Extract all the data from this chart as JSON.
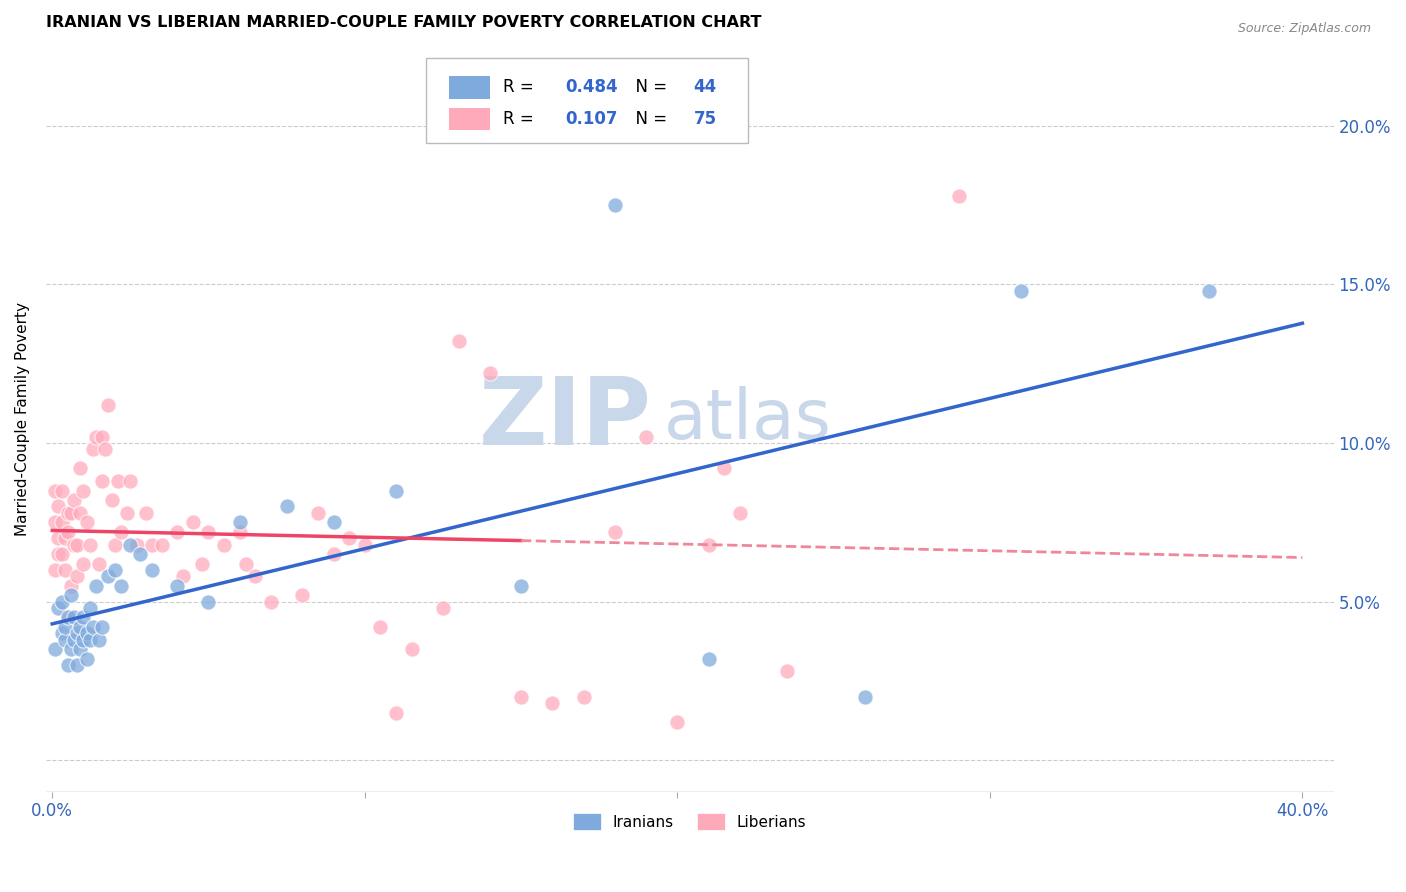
{
  "title": "IRANIAN VS LIBERIAN MARRIED-COUPLE FAMILY POVERTY CORRELATION CHART",
  "source": "Source: ZipAtlas.com",
  "ylabel": "Married-Couple Family Poverty",
  "ytick_vals": [
    0.0,
    0.05,
    0.1,
    0.15,
    0.2
  ],
  "ytick_labels": [
    "",
    "5.0%",
    "10.0%",
    "15.0%",
    "20.0%"
  ],
  "xtick_vals": [
    0.0,
    0.1,
    0.2,
    0.3,
    0.4
  ],
  "xtick_show": [
    0.0,
    0.4
  ],
  "xlim": [
    -0.002,
    0.41
  ],
  "ylim": [
    -0.01,
    0.225
  ],
  "iranian_color": "#7faadd",
  "liberian_color": "#ffaabb",
  "trendline_iranian_color": "#3366cc",
  "trendline_liberian_color": "#ee4466",
  "trendline_liberian_dash_color": "#ee8899",
  "R_iranian": 0.484,
  "N_iranian": 44,
  "R_liberian": 0.107,
  "N_liberian": 75,
  "watermark_zip": "ZIP",
  "watermark_atlas": "atlas",
  "watermark_color": "#c8d8ea",
  "iranians_x": [
    0.001,
    0.002,
    0.003,
    0.003,
    0.004,
    0.004,
    0.005,
    0.005,
    0.006,
    0.006,
    0.007,
    0.007,
    0.008,
    0.008,
    0.009,
    0.009,
    0.01,
    0.01,
    0.011,
    0.011,
    0.012,
    0.012,
    0.013,
    0.014,
    0.015,
    0.016,
    0.018,
    0.02,
    0.022,
    0.025,
    0.028,
    0.032,
    0.04,
    0.05,
    0.06,
    0.075,
    0.09,
    0.11,
    0.15,
    0.18,
    0.21,
    0.26,
    0.31,
    0.37
  ],
  "iranians_y": [
    0.035,
    0.048,
    0.04,
    0.05,
    0.038,
    0.042,
    0.03,
    0.045,
    0.035,
    0.052,
    0.038,
    0.045,
    0.04,
    0.03,
    0.042,
    0.035,
    0.045,
    0.038,
    0.04,
    0.032,
    0.038,
    0.048,
    0.042,
    0.055,
    0.038,
    0.042,
    0.058,
    0.06,
    0.055,
    0.068,
    0.065,
    0.06,
    0.055,
    0.05,
    0.075,
    0.08,
    0.075,
    0.085,
    0.055,
    0.175,
    0.032,
    0.02,
    0.148,
    0.148
  ],
  "liberians_x": [
    0.001,
    0.001,
    0.001,
    0.002,
    0.002,
    0.002,
    0.003,
    0.003,
    0.003,
    0.004,
    0.004,
    0.005,
    0.005,
    0.005,
    0.006,
    0.006,
    0.007,
    0.007,
    0.008,
    0.008,
    0.009,
    0.009,
    0.01,
    0.01,
    0.011,
    0.012,
    0.013,
    0.014,
    0.015,
    0.016,
    0.016,
    0.017,
    0.018,
    0.019,
    0.02,
    0.021,
    0.022,
    0.024,
    0.025,
    0.027,
    0.03,
    0.032,
    0.035,
    0.04,
    0.042,
    0.045,
    0.048,
    0.05,
    0.055,
    0.06,
    0.062,
    0.065,
    0.07,
    0.08,
    0.085,
    0.09,
    0.095,
    0.1,
    0.105,
    0.11,
    0.115,
    0.125,
    0.13,
    0.14,
    0.15,
    0.16,
    0.17,
    0.18,
    0.19,
    0.2,
    0.21,
    0.215,
    0.22,
    0.235,
    0.29
  ],
  "liberians_y": [
    0.06,
    0.075,
    0.085,
    0.065,
    0.07,
    0.08,
    0.065,
    0.075,
    0.085,
    0.06,
    0.07,
    0.045,
    0.072,
    0.078,
    0.055,
    0.078,
    0.068,
    0.082,
    0.058,
    0.068,
    0.078,
    0.092,
    0.062,
    0.085,
    0.075,
    0.068,
    0.098,
    0.102,
    0.062,
    0.088,
    0.102,
    0.098,
    0.112,
    0.082,
    0.068,
    0.088,
    0.072,
    0.078,
    0.088,
    0.068,
    0.078,
    0.068,
    0.068,
    0.072,
    0.058,
    0.075,
    0.062,
    0.072,
    0.068,
    0.072,
    0.062,
    0.058,
    0.05,
    0.052,
    0.078,
    0.065,
    0.07,
    0.068,
    0.042,
    0.015,
    0.035,
    0.048,
    0.132,
    0.122,
    0.02,
    0.018,
    0.02,
    0.072,
    0.102,
    0.012,
    0.068,
    0.092,
    0.078,
    0.028,
    0.178
  ]
}
